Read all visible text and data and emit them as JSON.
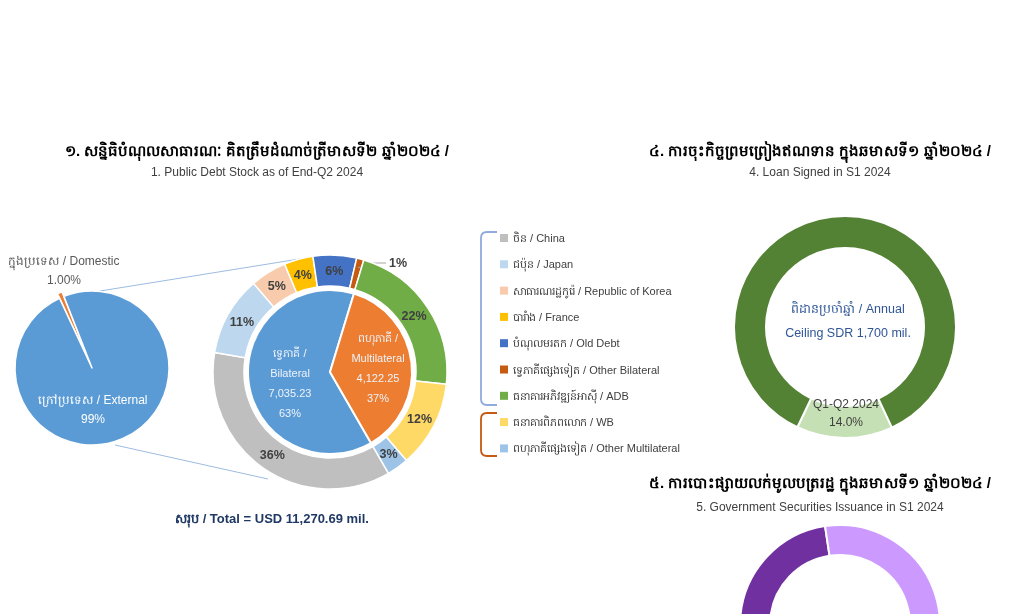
{
  "chart_data": [
    {
      "type": "pie",
      "categories": [
        "ក្នុងប្រទេស / Domestic",
        "ក្រៅប្រទេស / External"
      ],
      "values": [
        1.0,
        99
      ],
      "colors": [
        "#ed7d31",
        "#5b9bd5"
      ],
      "value_labels": [
        "1.00%",
        "99%"
      ]
    },
    {
      "type": "donut",
      "title": "១. សន្និធិបំណុលសាធារណៈ គិតត្រឹមដំណាច់ត្រីមាសទី២ ឆ្នាំ២០២៤ /",
      "subtitle": "1. Public Debt Stock as of End-Q2 2024",
      "categories": [
        "ចិន / China",
        "ជប៉ុន / Japan",
        "សាធារណរដ្ឋកូរ៉េ / Republic of Korea",
        "បារាំង / France",
        "បំណុលមរតក / Old Debt",
        "ទ្វេភាគីផ្សេងទៀត / Other Bilateral",
        "ធនាគារអភិវឌ្ឍន៍អាស៊ី / ADB",
        "ធនាគារពិភពលោក / WB",
        "ពហុភាគីផ្សេងទៀត / Other Multilateral"
      ],
      "values": [
        36,
        11,
        5,
        4,
        6,
        1,
        22,
        12,
        3
      ],
      "colors": [
        "#bfbfbf",
        "#bdd7ee",
        "#f8cbad",
        "#ffc000",
        "#4472c4",
        "#c55a11",
        "#70ad47",
        "#ffd966",
        "#9dc3e6"
      ],
      "value_labels": [
        "36%",
        "11%",
        "5%",
        "4%",
        "6%",
        "1%",
        "22%",
        "12%",
        "3%"
      ],
      "legend": "right",
      "annotations": [
        "សរុប / Total = USD 11,270.69 mil."
      ]
    },
    {
      "type": "pie",
      "categories": [
        "ទ្វេភាគី / Bilateral",
        "ពហុភាគី / Multilateral"
      ],
      "values": [
        7035.23,
        4122.25
      ],
      "colors": [
        "#5b9bd5",
        "#ed7d31"
      ],
      "value_labels": [
        "7,035.23\n63%",
        "4,122.25\n37%"
      ]
    },
    {
      "type": "donut",
      "title": "៤. ការចុះកិច្ចព្រមព្រៀងឥណទាន ក្នុងឆមាសទី១ ឆ្នាំ២០២៤ /",
      "subtitle": "4. Loan Signed in S1 2024",
      "categories": [
        "Q1-Q2 2024",
        null
      ],
      "values": [
        14.0,
        86.0
      ],
      "colors": [
        "#c5e0b4",
        "#548235"
      ],
      "value_labels": [
        "14.0%",
        null
      ],
      "annotations": [
        "ពិដានប្រចាំឆ្នាំ / Annual Ceiling SDR 1,700 mil."
      ]
    },
    {
      "type": "other",
      "title": "៥. ការបោះផ្សាយលក់មូលបត្ររដ្ឋ ក្នុងឆមាសទី១ ឆ្នាំ២០២៤ /",
      "subtitle": "5. Government Securities Issuance in S1 2024"
    }
  ]
}
